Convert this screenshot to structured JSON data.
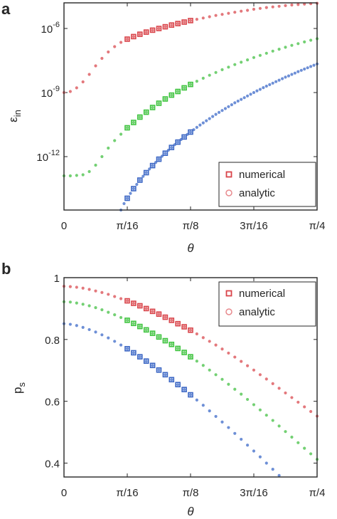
{
  "chart_data": [
    {
      "panel": "a",
      "type": "scatter",
      "title": "",
      "xlabel": "θ",
      "ylabel": "ε",
      "ylabel_sub": "in",
      "yscale": "log",
      "xlim": [
        0,
        0.7854
      ],
      "ylim_exp": [
        -14.5,
        -4.8
      ],
      "xticks": [
        0,
        0.19635,
        0.3927,
        0.58905,
        0.7854
      ],
      "xtick_labels": [
        "0",
        "π/16",
        "π/8",
        "3π/16",
        "π/4"
      ],
      "yticks_exp": [
        -6,
        -9,
        -12
      ],
      "ytick_labels": [
        "10",
        "10",
        "10"
      ],
      "ytick_sup": [
        "-6",
        "-9",
        "-12"
      ],
      "legend": {
        "position": "bottom-right",
        "entries": [
          "numerical",
          "analytic"
        ]
      },
      "colors": [
        "#d9444a",
        "#3ec43e",
        "#3b66c4"
      ],
      "analytic_series": [
        {
          "x": [
            0,
            0.0196,
            0.0393,
            0.0589,
            0.0785,
            0.0982,
            0.1178,
            0.1374,
            0.1571,
            0.1767,
            0.1963,
            0.216,
            0.2356,
            0.2553,
            0.2749,
            0.2945,
            0.3142,
            0.3338,
            0.3534,
            0.3731,
            0.3927,
            0.4123,
            0.432,
            0.4516,
            0.4712,
            0.4909,
            0.5105,
            0.5301,
            0.5498,
            0.5694,
            0.589,
            0.6087,
            0.6283,
            0.648,
            0.6676,
            0.6872,
            0.7069,
            0.7265,
            0.7461,
            0.7658,
            0.7854
          ],
          "log10y": [
            -9.0,
            -8.95,
            -8.78,
            -8.5,
            -8.15,
            -7.75,
            -7.4,
            -7.1,
            -6.85,
            -6.65,
            -6.5,
            -6.38,
            -6.27,
            -6.17,
            -6.08,
            -6.0,
            -5.92,
            -5.84,
            -5.77,
            -5.7,
            -5.63,
            -5.57,
            -5.51,
            -5.45,
            -5.39,
            -5.34,
            -5.29,
            -5.24,
            -5.19,
            -5.15,
            -5.1,
            -5.06,
            -5.02,
            -4.99,
            -4.96,
            -4.93,
            -4.9,
            -4.88,
            -4.86,
            -4.84,
            -4.82
          ]
        },
        {
          "x": [
            0,
            0.0196,
            0.0393,
            0.0589,
            0.0785,
            0.0982,
            0.1178,
            0.1374,
            0.1571,
            0.1767,
            0.1963,
            0.216,
            0.2356,
            0.2553,
            0.2749,
            0.2945,
            0.3142,
            0.3338,
            0.3534,
            0.3731,
            0.3927,
            0.4123,
            0.432,
            0.4516,
            0.4712,
            0.4909,
            0.5105,
            0.5301,
            0.5498,
            0.5694,
            0.589,
            0.6087,
            0.6283,
            0.648,
            0.6676,
            0.6872,
            0.7069,
            0.7265,
            0.7461,
            0.7658,
            0.7854
          ],
          "log10y": [
            -12.9,
            -12.9,
            -12.88,
            -12.85,
            -12.7,
            -12.4,
            -12.0,
            -11.6,
            -11.25,
            -10.95,
            -10.65,
            -10.4,
            -10.15,
            -9.92,
            -9.7,
            -9.5,
            -9.3,
            -9.12,
            -8.95,
            -8.78,
            -8.62,
            -8.47,
            -8.33,
            -8.19,
            -8.06,
            -7.93,
            -7.81,
            -7.69,
            -7.58,
            -7.47,
            -7.36,
            -7.26,
            -7.16,
            -7.06,
            -6.97,
            -6.88,
            -6.79,
            -6.71,
            -6.63,
            -6.55,
            -6.48
          ]
        },
        {
          "x": [
            0.1767,
            0.1864,
            0.1963,
            0.2062,
            0.216,
            0.2258,
            0.2356,
            0.2455,
            0.2553,
            0.2651,
            0.2749,
            0.2848,
            0.2945,
            0.3044,
            0.3142,
            0.324,
            0.3338,
            0.3436,
            0.3534,
            0.3633,
            0.3731,
            0.3829,
            0.3927,
            0.4026,
            0.4123,
            0.4222,
            0.432,
            0.4418,
            0.4516,
            0.4614,
            0.4712,
            0.4811,
            0.4909,
            0.5007,
            0.5105,
            0.5204,
            0.5301,
            0.54,
            0.5498,
            0.5596,
            0.5694,
            0.5793,
            0.589,
            0.5989,
            0.6087,
            0.6185,
            0.6283,
            0.6382,
            0.648,
            0.6578,
            0.6676,
            0.6775,
            0.6872,
            0.6971,
            0.7069,
            0.7167,
            0.7265,
            0.7364,
            0.7461,
            0.756,
            0.7658,
            0.7756,
            0.7854
          ],
          "log10y": [
            -14.5,
            -14.2,
            -13.95,
            -13.72,
            -13.5,
            -13.3,
            -13.1,
            -12.92,
            -12.75,
            -12.58,
            -12.42,
            -12.27,
            -12.12,
            -11.98,
            -11.84,
            -11.7,
            -11.57,
            -11.44,
            -11.32,
            -11.2,
            -11.08,
            -10.96,
            -10.85,
            -10.74,
            -10.63,
            -10.52,
            -10.42,
            -10.32,
            -10.22,
            -10.12,
            -10.02,
            -9.93,
            -9.84,
            -9.75,
            -9.66,
            -9.57,
            -9.48,
            -9.4,
            -9.32,
            -9.24,
            -9.16,
            -9.08,
            -9.0,
            -8.92,
            -8.85,
            -8.77,
            -8.7,
            -8.63,
            -8.56,
            -8.49,
            -8.42,
            -8.35,
            -8.28,
            -8.22,
            -8.15,
            -8.09,
            -8.02,
            -7.96,
            -7.9,
            -7.84,
            -7.78,
            -7.72,
            -7.66
          ]
        }
      ],
      "numerical_series": [
        {
          "x": [
            0.1963,
            0.216,
            0.2356,
            0.2553,
            0.2749,
            0.2945,
            0.3142,
            0.3338,
            0.3534,
            0.3731,
            0.3927
          ],
          "log10y": [
            -6.5,
            -6.38,
            -6.27,
            -6.17,
            -6.08,
            -6.0,
            -5.92,
            -5.84,
            -5.77,
            -5.7,
            -5.63
          ]
        },
        {
          "x": [
            0.1963,
            0.216,
            0.2356,
            0.2553,
            0.2749,
            0.2945,
            0.3142,
            0.3338,
            0.3534,
            0.3731,
            0.3927
          ],
          "log10y": [
            -10.65,
            -10.4,
            -10.15,
            -9.92,
            -9.7,
            -9.5,
            -9.3,
            -9.12,
            -8.95,
            -8.78,
            -8.62
          ]
        },
        {
          "x": [
            0.1963,
            0.216,
            0.2356,
            0.2553,
            0.2749,
            0.2945,
            0.3142,
            0.3338,
            0.3534,
            0.3731,
            0.3927
          ],
          "log10y": [
            -13.95,
            -13.5,
            -13.1,
            -12.75,
            -12.42,
            -12.12,
            -11.84,
            -11.57,
            -11.32,
            -11.08,
            -10.85
          ]
        }
      ]
    },
    {
      "panel": "b",
      "type": "scatter",
      "title": "",
      "xlabel": "θ",
      "ylabel": "p",
      "ylabel_sub": "s",
      "xlim": [
        0,
        0.7854
      ],
      "ylim": [
        0.355,
        1.0
      ],
      "xticks": [
        0,
        0.19635,
        0.3927,
        0.58905,
        0.7854
      ],
      "xtick_labels": [
        "0",
        "π/16",
        "π/8",
        "3π/16",
        "π/4"
      ],
      "yticks": [
        1.0,
        0.8,
        0.6,
        0.4
      ],
      "ytick_labels": [
        "1",
        "0.8",
        "0.6",
        "0.4"
      ],
      "legend": {
        "position": "top-right",
        "entries": [
          "numerical",
          "analytic"
        ]
      },
      "colors": [
        "#d9444a",
        "#3ec43e",
        "#3b66c4"
      ],
      "analytic_series": [
        {
          "x": [
            0,
            0.0196,
            0.0393,
            0.0589,
            0.0785,
            0.0982,
            0.1178,
            0.1374,
            0.1571,
            0.1767,
            0.1963,
            0.216,
            0.2356,
            0.2553,
            0.2749,
            0.2945,
            0.3142,
            0.3338,
            0.3534,
            0.3731,
            0.3927,
            0.4123,
            0.432,
            0.4516,
            0.4712,
            0.4909,
            0.5105,
            0.5301,
            0.5498,
            0.5694,
            0.589,
            0.6087,
            0.6283,
            0.648,
            0.6676,
            0.6872,
            0.7069,
            0.7265,
            0.7461,
            0.7658,
            0.7854
          ],
          "y": [
            0.972,
            0.971,
            0.969,
            0.966,
            0.962,
            0.957,
            0.952,
            0.946,
            0.939,
            0.932,
            0.925,
            0.917,
            0.909,
            0.9,
            0.891,
            0.882,
            0.872,
            0.862,
            0.851,
            0.841,
            0.83,
            0.818,
            0.806,
            0.794,
            0.782,
            0.769,
            0.756,
            0.743,
            0.729,
            0.715,
            0.701,
            0.686,
            0.672,
            0.657,
            0.642,
            0.627,
            0.612,
            0.597,
            0.582,
            0.567,
            0.552
          ]
        },
        {
          "x": [
            0,
            0.0196,
            0.0393,
            0.0589,
            0.0785,
            0.0982,
            0.1178,
            0.1374,
            0.1571,
            0.1767,
            0.1963,
            0.216,
            0.2356,
            0.2553,
            0.2749,
            0.2945,
            0.3142,
            0.3338,
            0.3534,
            0.3731,
            0.3927,
            0.4123,
            0.432,
            0.4516,
            0.4712,
            0.4909,
            0.5105,
            0.5301,
            0.5498,
            0.5694,
            0.589,
            0.6087,
            0.6283,
            0.648,
            0.6676,
            0.6872,
            0.7069,
            0.7265,
            0.7461,
            0.7658,
            0.7854
          ],
          "y": [
            0.922,
            0.921,
            0.918,
            0.914,
            0.909,
            0.903,
            0.896,
            0.888,
            0.88,
            0.871,
            0.862,
            0.852,
            0.842,
            0.831,
            0.82,
            0.808,
            0.796,
            0.784,
            0.771,
            0.758,
            0.744,
            0.73,
            0.716,
            0.701,
            0.686,
            0.671,
            0.655,
            0.639,
            0.623,
            0.606,
            0.589,
            0.572,
            0.555,
            0.538,
            0.52,
            0.502,
            0.484,
            0.466,
            0.448,
            0.43,
            0.412
          ]
        },
        {
          "x": [
            0,
            0.0196,
            0.0393,
            0.0589,
            0.0785,
            0.0982,
            0.1178,
            0.1374,
            0.1571,
            0.1767,
            0.1963,
            0.216,
            0.2356,
            0.2553,
            0.2749,
            0.2945,
            0.3142,
            0.3338,
            0.3534,
            0.3731,
            0.3927,
            0.4123,
            0.432,
            0.4516,
            0.4712,
            0.4909,
            0.5105,
            0.5301,
            0.5498,
            0.5694,
            0.589,
            0.6087,
            0.6283,
            0.648,
            0.6676
          ],
          "y": [
            0.851,
            0.849,
            0.845,
            0.839,
            0.832,
            0.824,
            0.815,
            0.805,
            0.794,
            0.782,
            0.77,
            0.757,
            0.744,
            0.73,
            0.716,
            0.701,
            0.686,
            0.67,
            0.654,
            0.638,
            0.621,
            0.604,
            0.587,
            0.569,
            0.551,
            0.533,
            0.515,
            0.496,
            0.477,
            0.458,
            0.439,
            0.42,
            0.4,
            0.38,
            0.36
          ]
        }
      ],
      "numerical_series": [
        {
          "x": [
            0.1963,
            0.216,
            0.2356,
            0.2553,
            0.2749,
            0.2945,
            0.3142,
            0.3338,
            0.3534,
            0.3731,
            0.3927
          ],
          "y": [
            0.925,
            0.917,
            0.909,
            0.9,
            0.891,
            0.882,
            0.872,
            0.862,
            0.851,
            0.841,
            0.83
          ]
        },
        {
          "x": [
            0.1963,
            0.216,
            0.2356,
            0.2553,
            0.2749,
            0.2945,
            0.3142,
            0.3338,
            0.3534,
            0.3731,
            0.3927
          ],
          "y": [
            0.862,
            0.852,
            0.842,
            0.831,
            0.82,
            0.808,
            0.796,
            0.784,
            0.771,
            0.758,
            0.744
          ]
        },
        {
          "x": [
            0.1963,
            0.216,
            0.2356,
            0.2553,
            0.2749,
            0.2945,
            0.3142,
            0.3338,
            0.3534,
            0.3731,
            0.3927
          ],
          "y": [
            0.77,
            0.757,
            0.744,
            0.73,
            0.716,
            0.701,
            0.686,
            0.67,
            0.654,
            0.638,
            0.621
          ]
        }
      ]
    }
  ]
}
